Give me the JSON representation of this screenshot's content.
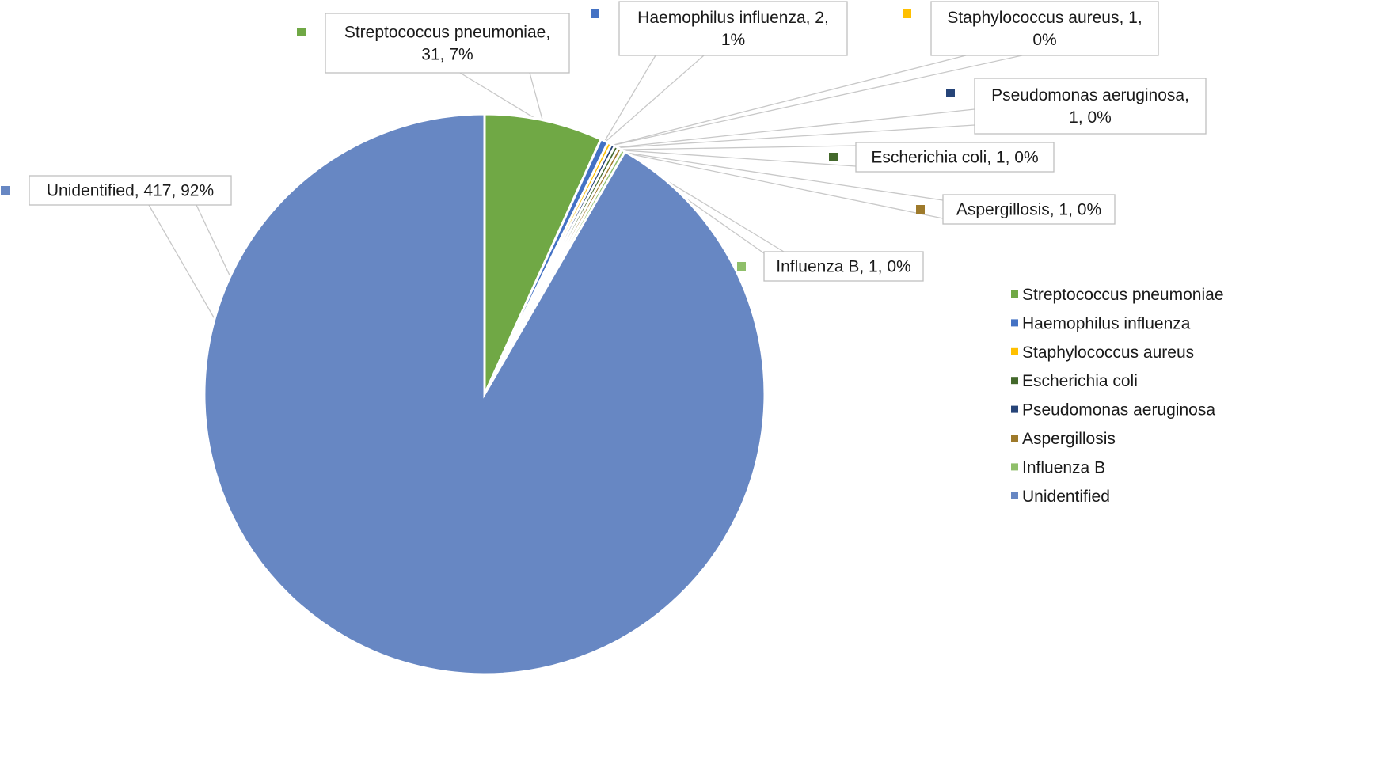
{
  "chart_data": {
    "type": "pie",
    "title": "",
    "legend_position": "right",
    "slices": [
      {
        "name": "Streptococcus pneumoniae",
        "value": 31,
        "percent": "7%",
        "color": "#70a845",
        "label_lines": [
          "Streptococcus pneumoniae,",
          "31, 7%"
        ]
      },
      {
        "name": "Haemophilus influenza",
        "value": 2,
        "percent": "1%",
        "color": "#4472c4",
        "label_lines": [
          "Haemophilus influenza, 2,",
          "1%"
        ]
      },
      {
        "name": "Staphylococcus aureus",
        "value": 1,
        "percent": "0%",
        "color": "#ffc000",
        "label_lines": [
          "Staphylococcus aureus, 1,",
          "0%"
        ]
      },
      {
        "name": "Pseudomonas aeruginosa",
        "value": 1,
        "percent": "0%",
        "color": "#264478",
        "label_lines": [
          "Pseudomonas aeruginosa,",
          "1, 0%"
        ]
      },
      {
        "name": "Escherichia coli",
        "value": 1,
        "percent": "0%",
        "color": "#43682b",
        "label_lines": [
          "Escherichia coli, 1, 0%"
        ]
      },
      {
        "name": "Aspergillosis",
        "value": 1,
        "percent": "0%",
        "color": "#9e7a2b",
        "label_lines": [
          "Aspergillosis, 1, 0%"
        ]
      },
      {
        "name": "Influenza B",
        "value": 1,
        "percent": "0%",
        "color": "#8fbf6a",
        "label_lines": [
          "Influenza B, 1, 0%"
        ]
      },
      {
        "name": "Unidentified",
        "value": 417,
        "percent": "92%",
        "color": "#6787c3",
        "label_lines": [
          "Unidentified, 417, 92%"
        ]
      }
    ],
    "legend": [
      {
        "name": "Streptococcus pneumoniae",
        "color": "#70a845"
      },
      {
        "name": "Haemophilus influenza",
        "color": "#4472c4"
      },
      {
        "name": "Staphylococcus aureus",
        "color": "#ffc000"
      },
      {
        "name": "Escherichia coli",
        "color": "#43682b"
      },
      {
        "name": "Pseudomonas aeruginosa",
        "color": "#264478"
      },
      {
        "name": "Aspergillosis",
        "color": "#9e7a2b"
      },
      {
        "name": "Influenza B",
        "color": "#8fbf6a"
      },
      {
        "name": "Unidentified",
        "color": "#6787c3"
      }
    ]
  }
}
